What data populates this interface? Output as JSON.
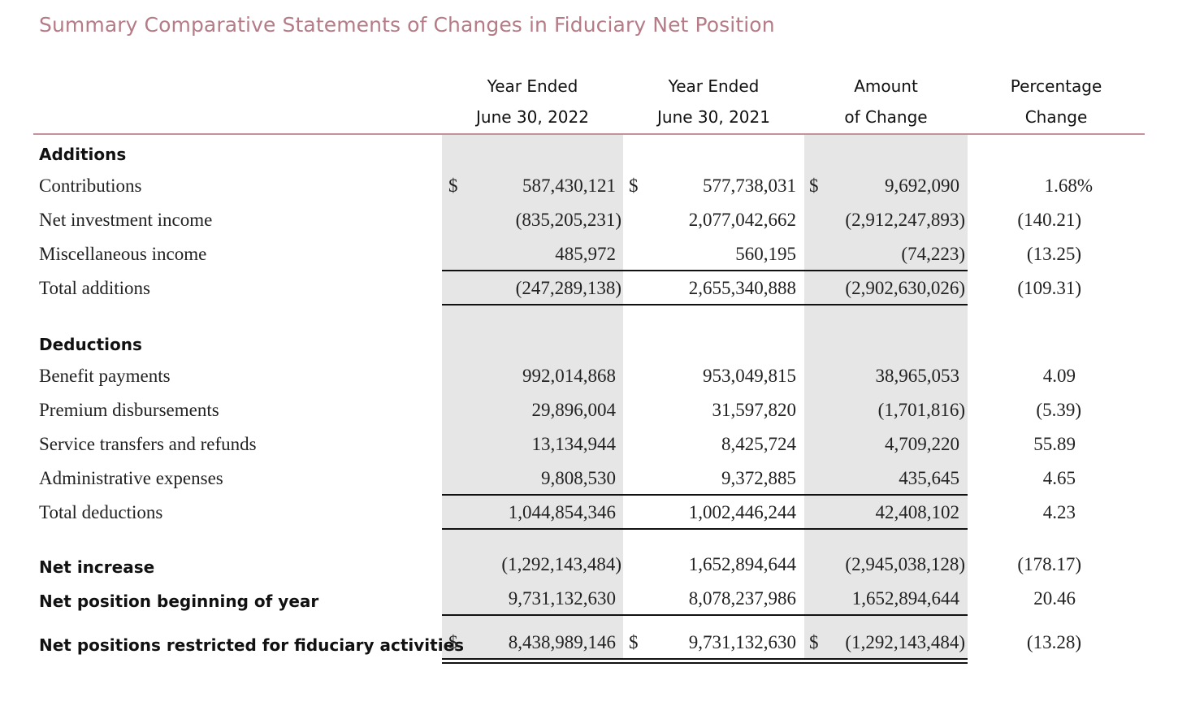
{
  "title": "Summary Comparative Statements of Changes in Fiduciary Net Position",
  "columns": [
    {
      "line1": "Year Ended",
      "line2": "June 30, 2022"
    },
    {
      "line1": "Year Ended",
      "line2": "June 30, 2021"
    },
    {
      "line1": "Amount",
      "line2": "of Change"
    },
    {
      "line1": "Percentage",
      "line2": "Change"
    }
  ],
  "currency_symbol": "$",
  "additions": {
    "heading": "Additions",
    "rows": [
      {
        "label": "Contributions",
        "y2022": "587,430,121",
        "y2021": "577,738,031",
        "change": "9,692,090",
        "pct": "1.68%"
      },
      {
        "label": "Net investment income",
        "y2022": "(835,205,231)",
        "y2021": "2,077,042,662",
        "change": "(2,912,247,893)",
        "pct": "(140.21)"
      },
      {
        "label": "Miscellaneous income",
        "y2022": "485,972",
        "y2021": "560,195",
        "change": "(74,223)",
        "pct": "(13.25)"
      }
    ],
    "total": {
      "label": "Total additions",
      "y2022": "(247,289,138)",
      "y2021": "2,655,340,888",
      "change": "(2,902,630,026)",
      "pct": "(109.31)"
    }
  },
  "deductions": {
    "heading": "Deductions",
    "rows": [
      {
        "label": "Benefit payments",
        "y2022": "992,014,868",
        "y2021": "953,049,815",
        "change": "38,965,053",
        "pct": "4.09"
      },
      {
        "label": "Premium disbursements",
        "y2022": "29,896,004",
        "y2021": "31,597,820",
        "change": "(1,701,816)",
        "pct": "(5.39)"
      },
      {
        "label": "Service transfers and refunds",
        "y2022": "13,134,944",
        "y2021": "8,425,724",
        "change": "4,709,220",
        "pct": "55.89"
      },
      {
        "label": "Administrative expenses",
        "y2022": "9,808,530",
        "y2021": "9,372,885",
        "change": "435,645",
        "pct": "4.65"
      }
    ],
    "total": {
      "label": "Total deductions",
      "y2022": "1,044,854,346",
      "y2021": "1,002,446,244",
      "change": "42,408,102",
      "pct": "4.23"
    }
  },
  "net_increase": {
    "label": "Net increase",
    "y2022": "(1,292,143,484)",
    "y2021": "1,652,894,644",
    "change": "(2,945,038,128)",
    "pct": "(178.17)"
  },
  "net_beginning": {
    "label": "Net position beginning of year",
    "y2022": "9,731,132,630",
    "y2021": "8,078,237,986",
    "change": "1,652,894,644",
    "pct": "20.46"
  },
  "net_restricted": {
    "label": "Net positions restricted for fiduciary activities",
    "y2022": "8,438,989,146",
    "y2021": "9,731,132,630",
    "change": "(1,292,143,484)",
    "pct": "(13.28)"
  }
}
